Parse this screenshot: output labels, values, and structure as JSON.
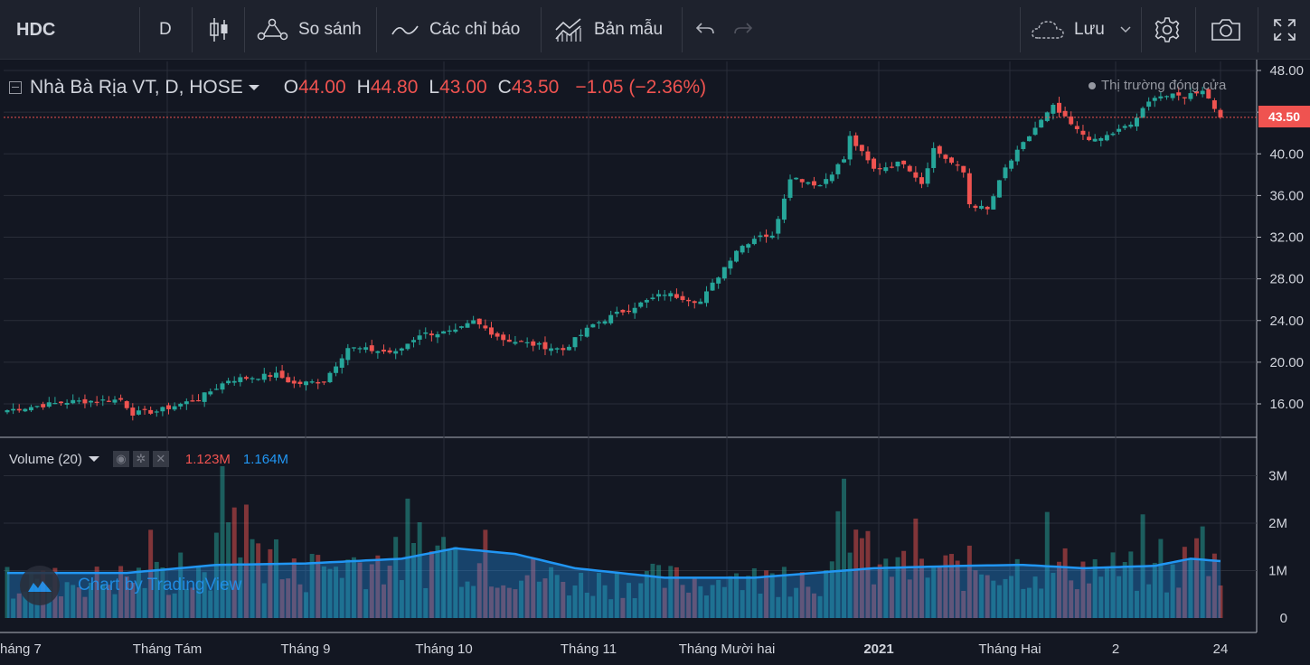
{
  "toolbar": {
    "symbol": "HDC",
    "interval": "D",
    "compare_label": "So sánh",
    "indicators_label": "Các chỉ báo",
    "templates_label": "Bản mẫu",
    "save_label": "Lưu"
  },
  "legend": {
    "title": "Nhà Bà Rịa VT, D, HOSE",
    "open_label": "O",
    "open": "44.00",
    "high_label": "H",
    "high": "44.80",
    "low_label": "L",
    "low": "43.00",
    "close_label": "C",
    "close": "43.50",
    "change": "−1.05 (−2.36%)",
    "market_status": "Thị trường đóng cửa",
    "last_price_tag": "43.50"
  },
  "volume_legend": {
    "title": "Volume (20)",
    "volume": "1.123M",
    "ma": "1.164M"
  },
  "watermark": "Chart by TradingView",
  "colors": {
    "up": "#26a69a",
    "down": "#ef5350",
    "bg": "#131722",
    "grid": "#2a2e39",
    "ma": "#2196f3"
  },
  "chart_data": {
    "type": "candlestick",
    "symbol": "HDC",
    "price_axis": {
      "ticks": [
        "48.00",
        "44.00",
        "40.00",
        "36.00",
        "32.00",
        "28.00",
        "24.00",
        "20.00",
        "16.00"
      ],
      "tick_values": [
        48,
        44,
        40,
        36,
        32,
        28,
        24,
        20,
        16
      ]
    },
    "volume_axis": {
      "ticks": [
        "3M",
        "2M",
        "1M",
        "0"
      ],
      "tick_values": [
        3,
        2,
        1,
        0
      ]
    },
    "time_axis": {
      "labels": [
        "háng 7",
        "Tháng Tám",
        "Tháng 9",
        "Tháng 10",
        "Tháng 11",
        "Tháng Mười hai",
        "2021",
        "Tháng Hai",
        "2",
        "24"
      ],
      "bold": [
        false,
        false,
        false,
        false,
        false,
        false,
        true,
        false,
        false,
        false
      ]
    },
    "anchors": [
      [
        0,
        15.4
      ],
      [
        10,
        16.2
      ],
      [
        19,
        16.4
      ],
      [
        21,
        15.1
      ],
      [
        25,
        15.3
      ],
      [
        32,
        16.5
      ],
      [
        37,
        18.3
      ],
      [
        45,
        18.8
      ],
      [
        48,
        17.9
      ],
      [
        53,
        18.2
      ],
      [
        57,
        21.4
      ],
      [
        65,
        20.9
      ],
      [
        69,
        22.7
      ],
      [
        75,
        22.9
      ],
      [
        78,
        23.9
      ],
      [
        83,
        22.2
      ],
      [
        90,
        21.5
      ],
      [
        93,
        21.2
      ],
      [
        98,
        23.6
      ],
      [
        103,
        24.9
      ],
      [
        110,
        26.6
      ],
      [
        116,
        25.8
      ],
      [
        122,
        30.8
      ],
      [
        126,
        32.3
      ],
      [
        128,
        32.0
      ],
      [
        131,
        37.8
      ],
      [
        136,
        37.0
      ],
      [
        140,
        39.5
      ],
      [
        141,
        41.6
      ],
      [
        145,
        38.5
      ],
      [
        150,
        39.2
      ],
      [
        153,
        37.2
      ],
      [
        155,
        40.5
      ],
      [
        160,
        38.2
      ],
      [
        161,
        35.2
      ],
      [
        164,
        34.6
      ],
      [
        167,
        38.6
      ],
      [
        172,
        42.5
      ],
      [
        175,
        44.5
      ],
      [
        179,
        42.2
      ],
      [
        182,
        41.2
      ],
      [
        188,
        42.8
      ],
      [
        192,
        45.6
      ],
      [
        197,
        45.5
      ],
      [
        200,
        46.2
      ],
      [
        203,
        43.5
      ]
    ],
    "volume_anchors": [
      [
        0,
        0.85
      ],
      [
        18,
        0.9
      ],
      [
        21,
        1.0
      ],
      [
        34,
        0.85
      ],
      [
        35,
        3.2
      ],
      [
        45,
        0.95
      ],
      [
        58,
        1.35
      ],
      [
        70,
        1.35
      ],
      [
        72,
        1.55
      ],
      [
        86,
        1.1
      ],
      [
        95,
        0.85
      ],
      [
        105,
        0.9
      ],
      [
        115,
        0.9
      ],
      [
        125,
        0.9
      ],
      [
        133,
        1.0
      ],
      [
        138,
        0.95
      ],
      [
        140,
        2.8
      ],
      [
        145,
        1.1
      ],
      [
        165,
        1.2
      ],
      [
        180,
        1.2
      ],
      [
        195,
        1.0
      ],
      [
        200,
        1.8
      ],
      [
        203,
        1.1
      ]
    ],
    "ma_anchors": [
      [
        0,
        0.95
      ],
      [
        20,
        0.95
      ],
      [
        35,
        1.12
      ],
      [
        50,
        1.15
      ],
      [
        66,
        1.25
      ],
      [
        75,
        1.47
      ],
      [
        85,
        1.35
      ],
      [
        95,
        1.05
      ],
      [
        110,
        0.85
      ],
      [
        125,
        0.85
      ],
      [
        135,
        0.95
      ],
      [
        145,
        1.05
      ],
      [
        160,
        1.1
      ],
      [
        170,
        1.12
      ],
      [
        180,
        1.05
      ],
      [
        192,
        1.1
      ],
      [
        198,
        1.25
      ],
      [
        203,
        1.2
      ]
    ],
    "last_close": 43.5
  }
}
